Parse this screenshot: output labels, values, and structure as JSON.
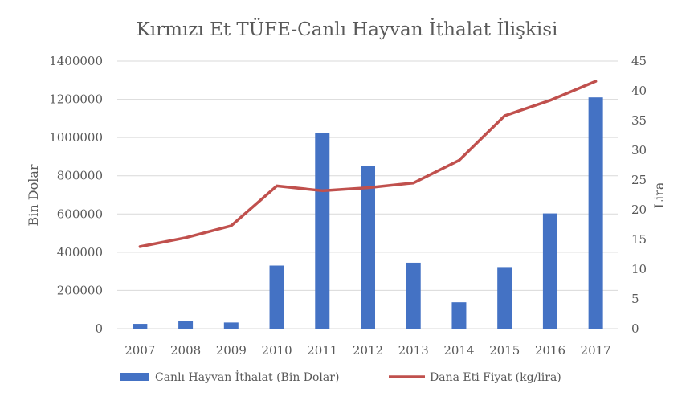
{
  "chart_data": {
    "type": "bar+line",
    "title": "Kırmızı Et TÜFE-Canlı Hayvan İthalat İlişkisi",
    "categories": [
      "2007",
      "2008",
      "2009",
      "2010",
      "2011",
      "2012",
      "2013",
      "2014",
      "2015",
      "2016",
      "2017"
    ],
    "ylabel_left": "Bin Dolar",
    "ylabel_right": "Lira",
    "ylim_left": [
      0,
      1400000
    ],
    "yticks_left": [
      "0",
      "200000",
      "400000",
      "600000",
      "800000",
      "1000000",
      "1200000",
      "1400000"
    ],
    "ylim_right": [
      0,
      45
    ],
    "yticks_right": [
      "0",
      "5",
      "10",
      "15",
      "20",
      "25",
      "30",
      "35",
      "40",
      "45"
    ],
    "grid": true,
    "legend_position": "bottom",
    "series": [
      {
        "name": "Canlı Hayvan İthalat (Bin Dolar)",
        "type": "bar",
        "axis": "left",
        "color": "#4472C4",
        "values": [
          25000,
          42000,
          32000,
          330000,
          1025000,
          850000,
          345000,
          138000,
          322000,
          603000,
          1210000
        ]
      },
      {
        "name": "Dana Eti Fiyat (kg/lira)",
        "type": "line",
        "axis": "right",
        "color": "#C0504D",
        "values": [
          13.8,
          15.3,
          17.3,
          24.0,
          23.2,
          23.7,
          24.5,
          28.3,
          35.8,
          38.4,
          41.6
        ]
      }
    ]
  }
}
